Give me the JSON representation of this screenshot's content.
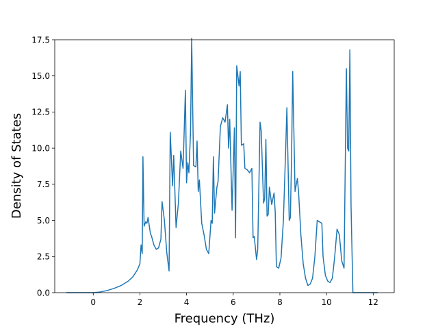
{
  "chart_data": {
    "type": "line",
    "title": "",
    "xlabel": "Frequency (THz)",
    "ylabel": "Density of States",
    "xlim": [
      -1.65,
      12.9
    ],
    "ylim": [
      0,
      17.5
    ],
    "x_ticks": [
      0,
      2,
      4,
      6,
      8,
      10,
      12
    ],
    "y_ticks": [
      0.0,
      2.5,
      5.0,
      7.5,
      10.0,
      12.5,
      15.0,
      17.5
    ],
    "x_tick_labels": [
      "0",
      "2",
      "4",
      "6",
      "8",
      "10",
      "12"
    ],
    "y_tick_labels": [
      "0.0",
      "2.5",
      "5.0",
      "7.5",
      "10.0",
      "12.5",
      "15.0",
      "17.5"
    ],
    "grid": false,
    "legend": "none",
    "series": [
      {
        "color": "#1f77b4",
        "x": [
          -1.15,
          -0.5,
          0.0,
          0.3,
          0.6,
          0.9,
          1.2,
          1.5,
          1.7,
          1.9,
          2.0,
          2.05,
          2.1,
          2.13,
          2.18,
          2.25,
          2.3,
          2.35,
          2.45,
          2.5,
          2.6,
          2.7,
          2.8,
          2.9,
          2.95,
          3.05,
          3.15,
          3.25,
          3.3,
          3.4,
          3.45,
          3.55,
          3.65,
          3.75,
          3.85,
          3.95,
          4.0,
          4.05,
          4.1,
          4.17,
          4.22,
          4.3,
          4.4,
          4.45,
          4.5,
          4.55,
          4.65,
          4.75,
          4.85,
          4.95,
          5.05,
          5.1,
          5.15,
          5.2,
          5.3,
          5.35,
          5.45,
          5.55,
          5.65,
          5.75,
          5.8,
          5.85,
          5.95,
          6.05,
          6.1,
          6.15,
          6.25,
          6.3,
          6.35,
          6.45,
          6.5,
          6.6,
          6.7,
          6.8,
          6.85,
          6.9,
          7.0,
          7.05,
          7.15,
          7.2,
          7.3,
          7.35,
          7.4,
          7.45,
          7.5,
          7.55,
          7.65,
          7.75,
          7.8,
          7.85,
          7.95,
          8.05,
          8.15,
          8.25,
          8.3,
          8.4,
          8.45,
          8.5,
          8.55,
          8.65,
          8.75,
          8.8,
          8.9,
          9.0,
          9.1,
          9.2,
          9.3,
          9.4,
          9.5,
          9.6,
          9.7,
          9.8,
          9.85,
          9.95,
          10.05,
          10.15,
          10.25,
          10.35,
          10.45,
          10.55,
          10.65,
          10.75,
          10.85,
          10.9,
          10.95,
          11.0,
          11.05,
          11.13,
          11.15,
          11.2,
          11.5,
          12.2
        ],
        "y": [
          0.0,
          0.0,
          0.0,
          0.05,
          0.15,
          0.3,
          0.5,
          0.8,
          1.1,
          1.6,
          2.0,
          3.3,
          2.7,
          9.4,
          4.6,
          4.9,
          4.8,
          5.2,
          4.1,
          3.9,
          3.3,
          3.0,
          3.1,
          3.7,
          6.3,
          5.0,
          2.8,
          1.5,
          11.1,
          7.4,
          9.5,
          4.5,
          6.2,
          9.8,
          8.6,
          14.0,
          7.6,
          9.0,
          8.3,
          11.1,
          17.6,
          8.8,
          8.7,
          10.5,
          7.0,
          7.8,
          4.8,
          4.0,
          3.0,
          2.7,
          5.0,
          4.8,
          9.4,
          5.5,
          7.3,
          7.7,
          11.5,
          12.1,
          11.8,
          13.0,
          10.0,
          12.0,
          5.7,
          11.4,
          3.8,
          15.7,
          14.3,
          15.3,
          10.2,
          10.3,
          8.6,
          8.5,
          8.3,
          8.6,
          3.8,
          3.9,
          2.3,
          3.0,
          11.8,
          11.2,
          6.2,
          6.5,
          10.6,
          5.3,
          5.4,
          7.3,
          6.1,
          6.9,
          5.6,
          1.8,
          1.7,
          2.4,
          5.0,
          10.0,
          12.8,
          5.0,
          5.2,
          9.3,
          15.3,
          7.0,
          7.9,
          7.0,
          4.0,
          2.0,
          1.0,
          0.5,
          0.6,
          1.0,
          2.5,
          5.0,
          4.9,
          4.8,
          2.5,
          1.2,
          0.8,
          0.7,
          1.0,
          2.5,
          4.4,
          4.0,
          2.2,
          1.7,
          15.5,
          10.0,
          9.8,
          16.8,
          6.0,
          0.0,
          0.0,
          0.0,
          0.0,
          0.0
        ]
      }
    ]
  }
}
